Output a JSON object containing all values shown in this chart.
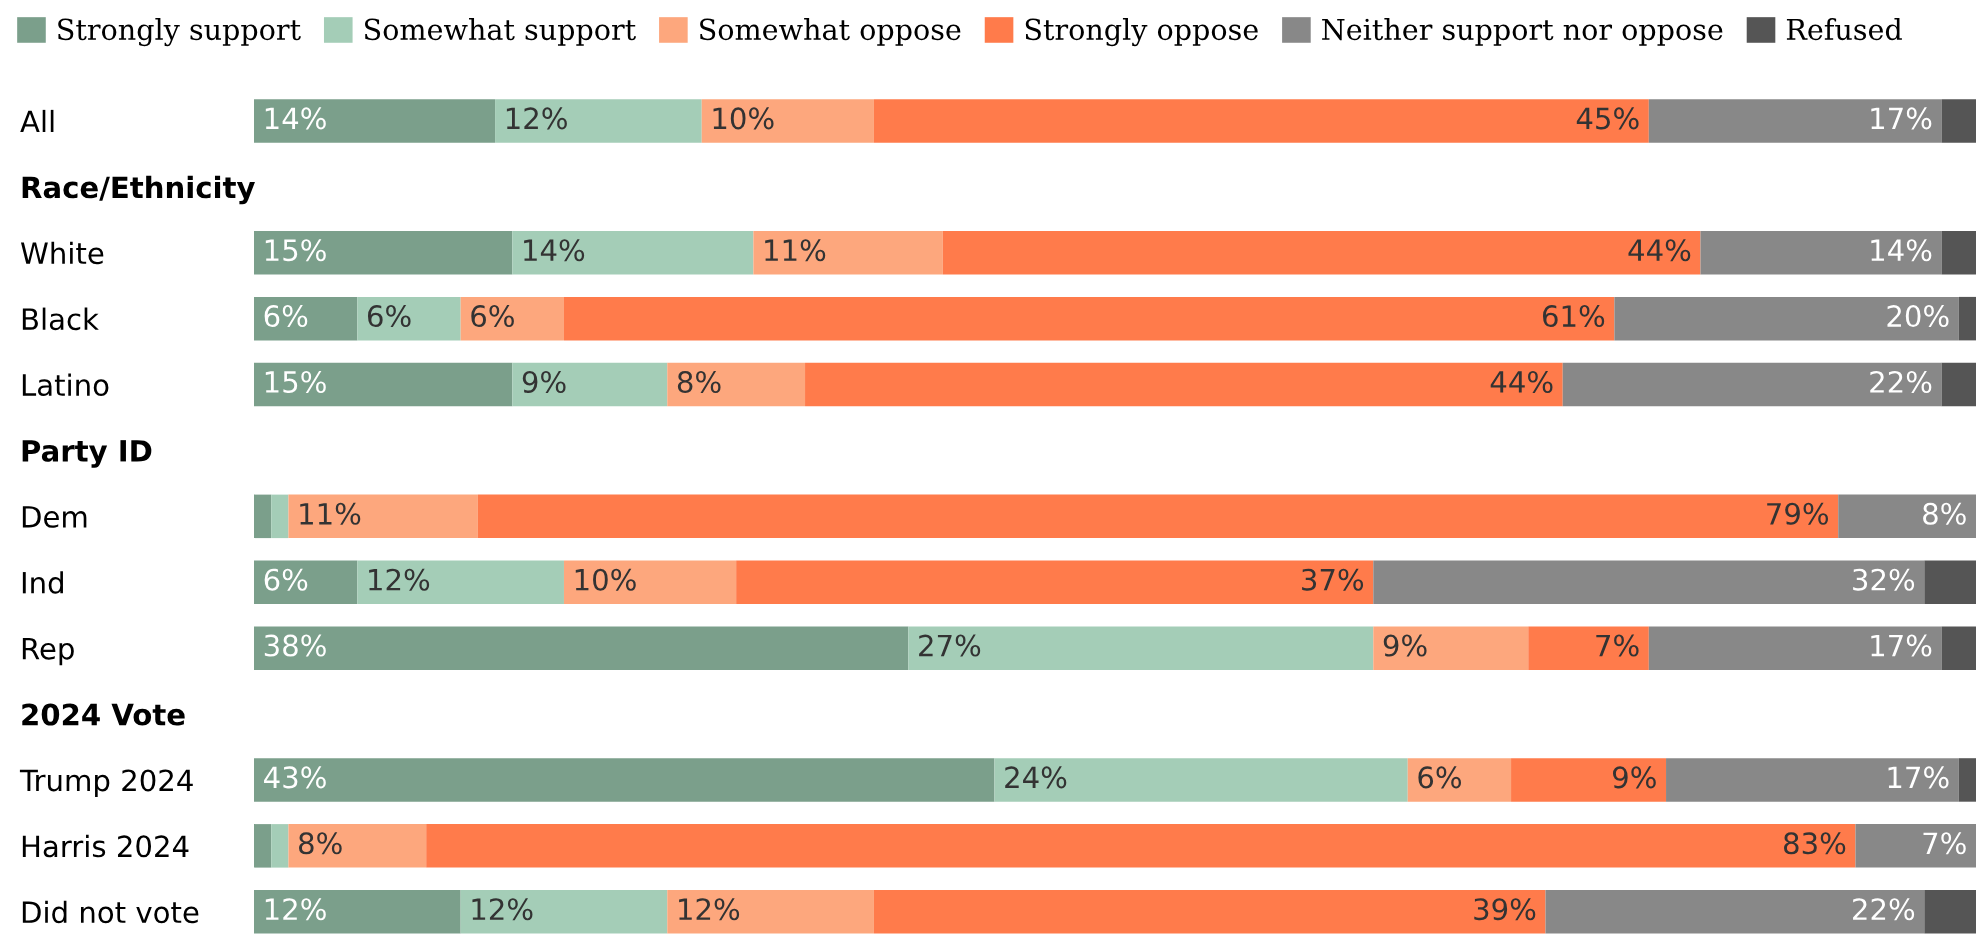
{
  "chart_data": {
    "type": "bar",
    "orientation": "horizontal",
    "stacked": true,
    "legend": "top",
    "tick_labels": "y",
    "grid": false,
    "xlim": [
      0,
      100
    ],
    "categories": [
      "All",
      "Race/Ethnicity",
      "White",
      "Black",
      "Latino",
      "Party ID",
      "Dem",
      "Ind",
      "Rep",
      "2024 Vote",
      "Trump 2024",
      "Harris 2024",
      "Did not vote"
    ],
    "series": [
      {
        "name": "Strongly support",
        "color": "#7b9f8b",
        "values": [
          14,
          null,
          15,
          6,
          15,
          null,
          1,
          6,
          38,
          null,
          43,
          1,
          12
        ],
        "value_labels": [
          "14%",
          null,
          "15%",
          "6%",
          "15%",
          null,
          null,
          "6%",
          "38%",
          null,
          "43%",
          null,
          "12%"
        ]
      },
      {
        "name": "Somewhat support",
        "color": "#a4cdb7",
        "values": [
          12,
          null,
          14,
          6,
          9,
          null,
          1,
          12,
          27,
          null,
          24,
          1,
          12
        ],
        "value_labels": [
          "12%",
          null,
          "14%",
          "6%",
          "9%",
          null,
          null,
          "12%",
          "27%",
          null,
          "24%",
          null,
          "12%"
        ]
      },
      {
        "name": "Somewhat oppose",
        "color": "#fda77d",
        "values": [
          10,
          null,
          11,
          6,
          8,
          null,
          11,
          10,
          9,
          null,
          6,
          8,
          12
        ],
        "value_labels": [
          "10%",
          null,
          "11%",
          "6%",
          "8%",
          null,
          "11%",
          "10%",
          "9%",
          null,
          "6%",
          "8%",
          "12%"
        ]
      },
      {
        "name": "Strongly oppose",
        "color": "#ff7b4b",
        "values": [
          45,
          null,
          44,
          61,
          44,
          null,
          79,
          37,
          7,
          null,
          9,
          83,
          39
        ],
        "value_labels": [
          "45%",
          null,
          "44%",
          "61%",
          "44%",
          null,
          "79%",
          "37%",
          "7%",
          null,
          "9%",
          "83%",
          "39%"
        ]
      },
      {
        "name": "Neither support nor oppose",
        "color": "#888888",
        "values": [
          17,
          null,
          14,
          20,
          22,
          null,
          8,
          32,
          17,
          null,
          17,
          7,
          22
        ],
        "value_labels": [
          "17%",
          null,
          "14%",
          "20%",
          "22%",
          null,
          "8%",
          "32%",
          "17%",
          null,
          "17%",
          "7%",
          "22%"
        ]
      },
      {
        "name": "Refused",
        "color": "#555555",
        "values": [
          2,
          null,
          2,
          1,
          2,
          null,
          0,
          3,
          2,
          null,
          1,
          0,
          3
        ],
        "value_labels": [
          null,
          null,
          null,
          null,
          null,
          null,
          null,
          null,
          null,
          null,
          null,
          null,
          null
        ]
      }
    ]
  }
}
